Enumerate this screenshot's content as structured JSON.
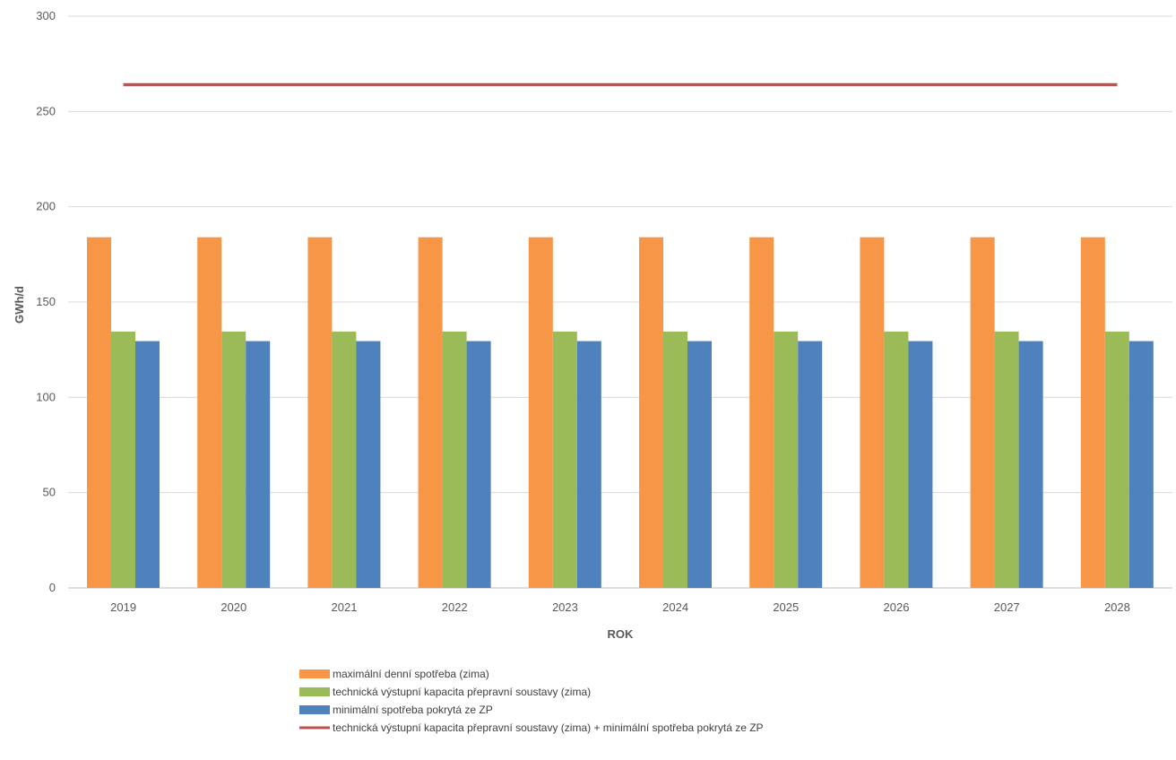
{
  "chart_data": {
    "type": "bar",
    "xlabel": "ROK",
    "ylabel": "GWh/d",
    "ylim": [
      0,
      300
    ],
    "yticks": [
      0,
      50,
      100,
      150,
      200,
      250,
      300
    ],
    "grid": true,
    "legend_position": "bottom",
    "categories": [
      "2019",
      "2020",
      "2021",
      "2022",
      "2023",
      "2024",
      "2025",
      "2026",
      "2027",
      "2028"
    ],
    "series": [
      {
        "name": "maximální denní spotřeba (zima)",
        "kind": "bar",
        "color": "#F79646",
        "values": [
          184,
          184,
          184,
          184,
          184,
          184,
          184,
          184,
          184,
          184
        ]
      },
      {
        "name": "technická výstupní kapacita přepravní soustavy (zima)",
        "kind": "bar",
        "color": "#9BBB59",
        "values": [
          134.5,
          134.5,
          134.5,
          134.5,
          134.5,
          134.5,
          134.5,
          134.5,
          134.5,
          134.5
        ]
      },
      {
        "name": "minimální spotřeba pokrytá ze ZP",
        "kind": "bar",
        "color": "#4F81BD",
        "values": [
          129.5,
          129.5,
          129.5,
          129.5,
          129.5,
          129.5,
          129.5,
          129.5,
          129.5,
          129.5
        ]
      },
      {
        "name": "technická výstupní kapacita přepravní soustavy (zima) + minimální spotřeba pokrytá ze ZP",
        "kind": "line",
        "color": "#C0504D",
        "values": [
          264,
          264,
          264,
          264,
          264,
          264,
          264,
          264,
          264,
          264
        ]
      }
    ]
  }
}
